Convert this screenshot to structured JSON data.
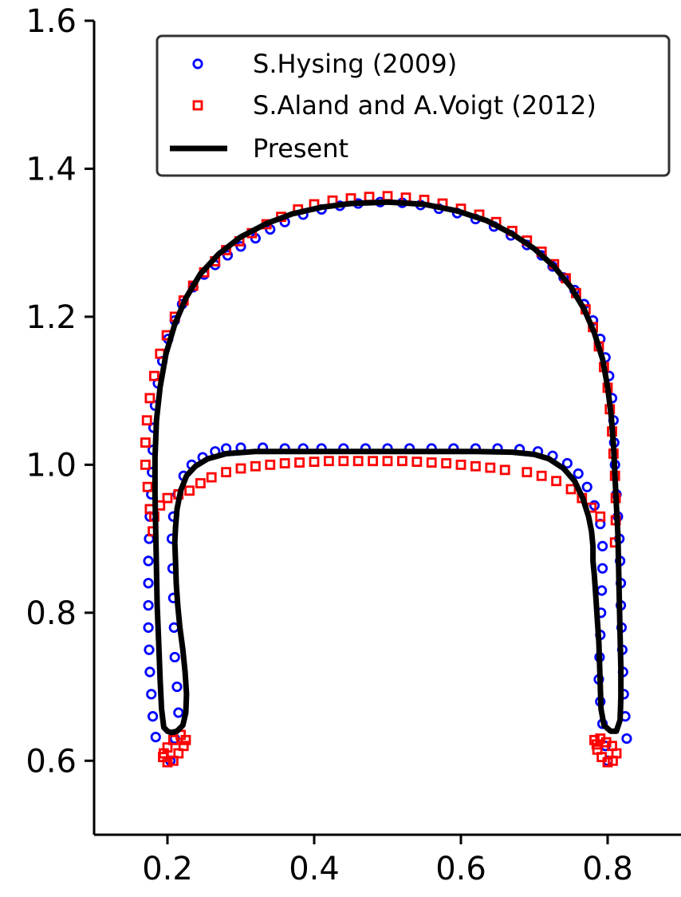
{
  "chart_data": {
    "type": "scatter",
    "title": "",
    "xlabel": "",
    "ylabel": "",
    "xlim": [
      0.1,
      0.9
    ],
    "ylim": [
      0.5,
      1.6
    ],
    "grid": false,
    "legend_position": "top-right",
    "x_ticks": [
      0.2,
      0.4,
      0.6,
      0.8
    ],
    "x_tick_labels": [
      "0.2",
      "0.4",
      "0.6",
      "0.8"
    ],
    "y_ticks": [
      0.6,
      0.8,
      1.0,
      1.2,
      1.4,
      1.6
    ],
    "y_tick_labels": [
      "0.6",
      "0.8",
      "1.0",
      "1.2",
      "1.4",
      "1.6"
    ],
    "series": [
      {
        "name": "S.Hysing (2009)",
        "marker": "circle",
        "color": "#0000ff",
        "points": [
          [
            0.184,
            0.632
          ],
          [
            0.18,
            0.66
          ],
          [
            0.178,
            0.69
          ],
          [
            0.176,
            0.72
          ],
          [
            0.175,
            0.75
          ],
          [
            0.174,
            0.78
          ],
          [
            0.174,
            0.81
          ],
          [
            0.174,
            0.84
          ],
          [
            0.174,
            0.87
          ],
          [
            0.175,
            0.9
          ],
          [
            0.176,
            0.93
          ],
          [
            0.178,
            0.96
          ],
          [
            0.179,
            0.99
          ],
          [
            0.18,
            1.02
          ],
          [
            0.181,
            1.05
          ],
          [
            0.183,
            1.08
          ],
          [
            0.187,
            1.11
          ],
          [
            0.193,
            1.14
          ],
          [
            0.201,
            1.17
          ],
          [
            0.21,
            1.195
          ],
          [
            0.22,
            1.217
          ],
          [
            0.235,
            1.24
          ],
          [
            0.25,
            1.257
          ],
          [
            0.265,
            1.27
          ],
          [
            0.282,
            1.283
          ],
          [
            0.3,
            1.295
          ],
          [
            0.32,
            1.306
          ],
          [
            0.34,
            1.318
          ],
          [
            0.36,
            1.328
          ],
          [
            0.385,
            1.338
          ],
          [
            0.41,
            1.345
          ],
          [
            0.435,
            1.35
          ],
          [
            0.46,
            1.353
          ],
          [
            0.49,
            1.355
          ],
          [
            0.52,
            1.354
          ],
          [
            0.545,
            1.351
          ],
          [
            0.57,
            1.346
          ],
          [
            0.595,
            1.34
          ],
          [
            0.62,
            1.332
          ],
          [
            0.645,
            1.322
          ],
          [
            0.668,
            1.31
          ],
          [
            0.69,
            1.297
          ],
          [
            0.71,
            1.283
          ],
          [
            0.725,
            1.268
          ],
          [
            0.74,
            1.253
          ],
          [
            0.755,
            1.236
          ],
          [
            0.768,
            1.217
          ],
          [
            0.78,
            1.195
          ],
          [
            0.79,
            1.17
          ],
          [
            0.797,
            1.145
          ],
          [
            0.802,
            1.12
          ],
          [
            0.806,
            1.09
          ],
          [
            0.808,
            1.06
          ],
          [
            0.809,
            1.03
          ],
          [
            0.81,
            1.0
          ],
          [
            0.812,
            0.96
          ],
          [
            0.814,
            0.93
          ],
          [
            0.816,
            0.9
          ],
          [
            0.817,
            0.87
          ],
          [
            0.818,
            0.84
          ],
          [
            0.818,
            0.81
          ],
          [
            0.819,
            0.78
          ],
          [
            0.82,
            0.75
          ],
          [
            0.821,
            0.72
          ],
          [
            0.822,
            0.69
          ],
          [
            0.824,
            0.66
          ],
          [
            0.826,
            0.63
          ],
          [
            0.204,
            0.6
          ],
          [
            0.21,
            0.63
          ],
          [
            0.215,
            0.665
          ],
          [
            0.213,
            0.7
          ],
          [
            0.21,
            0.74
          ],
          [
            0.209,
            0.78
          ],
          [
            0.208,
            0.82
          ],
          [
            0.207,
            0.86
          ],
          [
            0.206,
            0.9
          ],
          [
            0.208,
            0.93
          ],
          [
            0.214,
            0.96
          ],
          [
            0.222,
            0.985
          ],
          [
            0.233,
            1.0
          ],
          [
            0.248,
            1.01
          ],
          [
            0.265,
            1.018
          ],
          [
            0.28,
            1.022
          ],
          [
            0.3,
            1.023
          ],
          [
            0.33,
            1.023
          ],
          [
            0.36,
            1.022
          ],
          [
            0.385,
            1.022
          ],
          [
            0.41,
            1.022
          ],
          [
            0.44,
            1.022
          ],
          [
            0.47,
            1.022
          ],
          [
            0.5,
            1.022
          ],
          [
            0.53,
            1.022
          ],
          [
            0.56,
            1.022
          ],
          [
            0.59,
            1.022
          ],
          [
            0.62,
            1.022
          ],
          [
            0.65,
            1.022
          ],
          [
            0.68,
            1.021
          ],
          [
            0.705,
            1.018
          ],
          [
            0.725,
            1.012
          ],
          [
            0.745,
            1.002
          ],
          [
            0.76,
            0.988
          ],
          [
            0.772,
            0.97
          ],
          [
            0.782,
            0.945
          ],
          [
            0.79,
            0.92
          ],
          [
            0.793,
            0.89
          ],
          [
            0.793,
            0.86
          ],
          [
            0.792,
            0.83
          ],
          [
            0.791,
            0.8
          ],
          [
            0.79,
            0.77
          ],
          [
            0.789,
            0.74
          ],
          [
            0.788,
            0.71
          ],
          [
            0.79,
            0.68
          ],
          [
            0.793,
            0.65
          ],
          [
            0.797,
            0.62
          ],
          [
            0.8,
            0.6
          ]
        ]
      },
      {
        "name": "S.Aland and A.Voigt (2012)",
        "marker": "square",
        "color": "#ff0000",
        "points": [
          [
            0.18,
            0.91
          ],
          [
            0.176,
            0.94
          ],
          [
            0.173,
            0.97
          ],
          [
            0.17,
            1.0
          ],
          [
            0.17,
            1.03
          ],
          [
            0.172,
            1.06
          ],
          [
            0.176,
            1.09
          ],
          [
            0.182,
            1.12
          ],
          [
            0.19,
            1.15
          ],
          [
            0.199,
            1.175
          ],
          [
            0.21,
            1.2
          ],
          [
            0.222,
            1.222
          ],
          [
            0.235,
            1.242
          ],
          [
            0.25,
            1.26
          ],
          [
            0.265,
            1.275
          ],
          [
            0.28,
            1.29
          ],
          [
            0.298,
            1.302
          ],
          [
            0.315,
            1.313
          ],
          [
            0.335,
            1.325
          ],
          [
            0.355,
            1.335
          ],
          [
            0.378,
            1.345
          ],
          [
            0.4,
            1.352
          ],
          [
            0.425,
            1.357
          ],
          [
            0.45,
            1.36
          ],
          [
            0.475,
            1.362
          ],
          [
            0.5,
            1.363
          ],
          [
            0.525,
            1.361
          ],
          [
            0.55,
            1.358
          ],
          [
            0.575,
            1.353
          ],
          [
            0.6,
            1.346
          ],
          [
            0.625,
            1.338
          ],
          [
            0.648,
            1.328
          ],
          [
            0.67,
            1.316
          ],
          [
            0.69,
            1.303
          ],
          [
            0.71,
            1.288
          ],
          [
            0.727,
            1.271
          ],
          [
            0.743,
            1.252
          ],
          [
            0.757,
            1.232
          ],
          [
            0.77,
            1.21
          ],
          [
            0.78,
            1.186
          ],
          [
            0.788,
            1.16
          ],
          [
            0.795,
            1.132
          ],
          [
            0.8,
            1.104
          ],
          [
            0.803,
            1.075
          ],
          [
            0.806,
            1.045
          ],
          [
            0.808,
            1.015
          ],
          [
            0.81,
            0.985
          ],
          [
            0.811,
            0.955
          ],
          [
            0.811,
            0.925
          ],
          [
            0.81,
            0.895
          ],
          [
            0.182,
            0.93
          ],
          [
            0.19,
            0.945
          ],
          [
            0.2,
            0.955
          ],
          [
            0.215,
            0.96
          ],
          [
            0.23,
            0.965
          ],
          [
            0.245,
            0.975
          ],
          [
            0.26,
            0.983
          ],
          [
            0.28,
            0.99
          ],
          [
            0.3,
            0.995
          ],
          [
            0.32,
            0.998
          ],
          [
            0.34,
            1.0
          ],
          [
            0.36,
            1.002
          ],
          [
            0.38,
            1.003
          ],
          [
            0.4,
            1.004
          ],
          [
            0.42,
            1.005
          ],
          [
            0.44,
            1.005
          ],
          [
            0.46,
            1.005
          ],
          [
            0.48,
            1.005
          ],
          [
            0.5,
            1.005
          ],
          [
            0.52,
            1.005
          ],
          [
            0.54,
            1.004
          ],
          [
            0.56,
            1.003
          ],
          [
            0.58,
            1.002
          ],
          [
            0.6,
            1.0
          ],
          [
            0.62,
            0.998
          ],
          [
            0.64,
            0.996
          ],
          [
            0.66,
            0.993
          ],
          [
            0.69,
            0.99
          ],
          [
            0.71,
            0.985
          ],
          [
            0.73,
            0.978
          ],
          [
            0.75,
            0.967
          ],
          [
            0.765,
            0.955
          ],
          [
            0.778,
            0.942
          ],
          [
            0.79,
            0.93
          ],
          [
            0.194,
            0.605
          ],
          [
            0.2,
            0.598
          ],
          [
            0.208,
            0.6
          ],
          [
            0.215,
            0.61
          ],
          [
            0.222,
            0.62
          ],
          [
            0.225,
            0.628
          ],
          [
            0.218,
            0.635
          ],
          [
            0.208,
            0.628
          ],
          [
            0.2,
            0.618
          ],
          [
            0.195,
            0.61
          ],
          [
            0.782,
            0.628
          ],
          [
            0.786,
            0.615
          ],
          [
            0.792,
            0.605
          ],
          [
            0.8,
            0.598
          ],
          [
            0.807,
            0.6
          ],
          [
            0.812,
            0.61
          ],
          [
            0.806,
            0.62
          ],
          [
            0.798,
            0.625
          ],
          [
            0.79,
            0.63
          ],
          [
            0.785,
            0.622
          ]
        ]
      },
      {
        "name": "Present",
        "marker": "line",
        "color": "#000000",
        "points": [
          [
            0.2,
            0.64
          ],
          [
            0.195,
            0.645
          ],
          [
            0.192,
            0.67
          ],
          [
            0.19,
            0.71
          ],
          [
            0.188,
            0.76
          ],
          [
            0.186,
            0.81
          ],
          [
            0.185,
            0.86
          ],
          [
            0.184,
            0.91
          ],
          [
            0.183,
            0.96
          ],
          [
            0.183,
            1.01
          ],
          [
            0.185,
            1.06
          ],
          [
            0.19,
            1.105
          ],
          [
            0.198,
            1.15
          ],
          [
            0.21,
            1.19
          ],
          [
            0.225,
            1.225
          ],
          [
            0.245,
            1.258
          ],
          [
            0.27,
            1.285
          ],
          [
            0.3,
            1.308
          ],
          [
            0.335,
            1.326
          ],
          [
            0.37,
            1.339
          ],
          [
            0.41,
            1.348
          ],
          [
            0.45,
            1.353
          ],
          [
            0.5,
            1.355
          ],
          [
            0.55,
            1.352
          ],
          [
            0.595,
            1.343
          ],
          [
            0.635,
            1.33
          ],
          [
            0.67,
            1.312
          ],
          [
            0.7,
            1.292
          ],
          [
            0.727,
            1.268
          ],
          [
            0.75,
            1.24
          ],
          [
            0.768,
            1.21
          ],
          [
            0.782,
            1.178
          ],
          [
            0.793,
            1.143
          ],
          [
            0.8,
            1.105
          ],
          [
            0.805,
            1.065
          ],
          [
            0.808,
            1.025
          ],
          [
            0.81,
            0.985
          ],
          [
            0.812,
            0.945
          ],
          [
            0.814,
            0.905
          ],
          [
            0.815,
            0.86
          ],
          [
            0.816,
            0.815
          ],
          [
            0.817,
            0.77
          ],
          [
            0.818,
            0.725
          ],
          [
            0.818,
            0.685
          ],
          [
            0.817,
            0.655
          ],
          [
            0.812,
            0.64
          ],
          [
            0.804,
            0.64
          ],
          [
            0.795,
            0.648
          ],
          [
            0.791,
            0.67
          ],
          [
            0.79,
            0.7
          ],
          [
            0.789,
            0.73
          ],
          [
            0.788,
            0.76
          ],
          [
            0.786,
            0.79
          ],
          [
            0.784,
            0.82
          ],
          [
            0.782,
            0.85
          ],
          [
            0.78,
            0.87
          ],
          [
            0.78,
            0.89
          ],
          [
            0.778,
            0.91
          ],
          [
            0.774,
            0.93
          ],
          [
            0.766,
            0.955
          ],
          [
            0.755,
            0.978
          ],
          [
            0.74,
            0.995
          ],
          [
            0.72,
            1.008
          ],
          [
            0.7,
            1.014
          ],
          [
            0.67,
            1.017
          ],
          [
            0.62,
            1.018
          ],
          [
            0.56,
            1.018
          ],
          [
            0.5,
            1.018
          ],
          [
            0.44,
            1.018
          ],
          [
            0.38,
            1.018
          ],
          [
            0.32,
            1.018
          ],
          [
            0.28,
            1.015
          ],
          [
            0.255,
            1.008
          ],
          [
            0.238,
            0.998
          ],
          [
            0.226,
            0.985
          ],
          [
            0.218,
            0.965
          ],
          [
            0.213,
            0.94
          ],
          [
            0.211,
            0.915
          ],
          [
            0.21,
            0.895
          ],
          [
            0.211,
            0.87
          ],
          [
            0.212,
            0.84
          ],
          [
            0.214,
            0.81
          ],
          [
            0.217,
            0.78
          ],
          [
            0.221,
            0.75
          ],
          [
            0.224,
            0.72
          ],
          [
            0.226,
            0.69
          ],
          [
            0.225,
            0.665
          ],
          [
            0.221,
            0.648
          ],
          [
            0.213,
            0.64
          ],
          [
            0.205,
            0.638
          ],
          [
            0.2,
            0.64
          ]
        ]
      }
    ]
  }
}
